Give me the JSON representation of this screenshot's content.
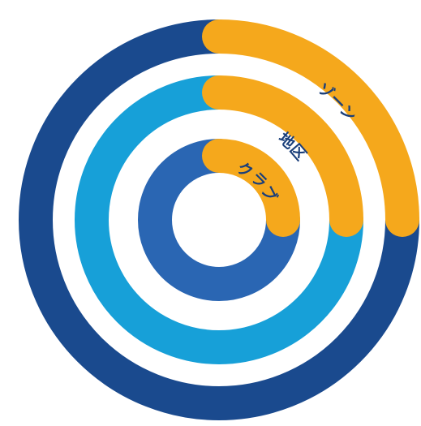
{
  "diagram": {
    "rings": [
      {
        "id": "outer",
        "label": "ゾーン",
        "base_color": "#1a4a8e",
        "accent_color": "#f5a81c",
        "accent_fraction": 0.25
      },
      {
        "id": "middle",
        "label": "地区",
        "base_color": "#17a0d8",
        "accent_color": "#f5a81c",
        "accent_fraction": 0.25
      },
      {
        "id": "inner",
        "label": "クラブ",
        "base_color": "#2a66b3",
        "accent_color": "#f5a81c",
        "accent_fraction": 0.25
      }
    ]
  }
}
